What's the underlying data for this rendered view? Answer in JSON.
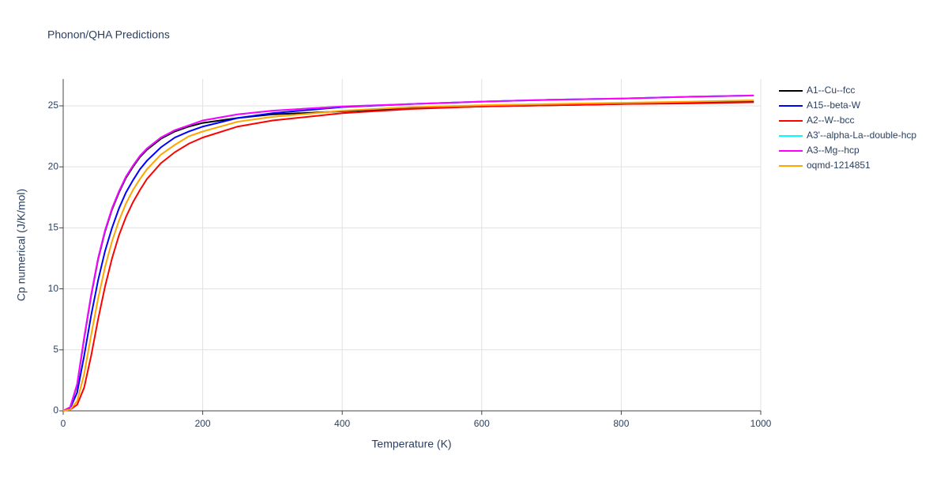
{
  "chart_data": {
    "type": "line",
    "title": "Phonon/QHA Predictions",
    "x_label": "Temperature (K)",
    "y_label": "Cp numerical (J/K/mol)",
    "x": [
      0,
      10,
      20,
      30,
      40,
      50,
      60,
      70,
      80,
      90,
      100,
      110,
      120,
      140,
      160,
      180,
      200,
      250,
      300,
      400,
      500,
      600,
      700,
      800,
      900,
      990
    ],
    "series": [
      {
        "name": "A1--Cu--fcc",
        "color": "#000000",
        "values": [
          0,
          0.3,
          2.1,
          5.9,
          9.4,
          12.4,
          14.7,
          16.5,
          17.9,
          19.1,
          20.0,
          20.8,
          21.4,
          22.3,
          22.9,
          23.3,
          23.6,
          24.0,
          24.3,
          24.55,
          24.8,
          24.95,
          25.05,
          25.15,
          25.25,
          25.35
        ]
      },
      {
        "name": "A15--beta-W",
        "color": "#0000ff",
        "values": [
          0,
          0.2,
          1.5,
          4.5,
          7.8,
          10.7,
          13.1,
          15.0,
          16.6,
          17.9,
          18.9,
          19.8,
          20.5,
          21.6,
          22.4,
          22.9,
          23.3,
          24.0,
          24.4,
          24.9,
          25.15,
          25.35,
          25.5,
          25.6,
          25.75,
          25.85
        ]
      },
      {
        "name": "A2--W--bcc",
        "color": "#ff0000",
        "values": [
          0,
          0.1,
          0.5,
          1.9,
          4.5,
          7.5,
          10.2,
          12.5,
          14.4,
          15.9,
          17.1,
          18.1,
          19.0,
          20.3,
          21.2,
          21.9,
          22.4,
          23.3,
          23.8,
          24.4,
          24.75,
          24.95,
          25.05,
          25.15,
          25.2,
          25.3
        ]
      },
      {
        "name": "A3'--alpha-La--double-hcp",
        "color": "#00ffff",
        "values": [
          0,
          0.3,
          2.2,
          6.0,
          9.5,
          12.5,
          14.8,
          16.6,
          18.0,
          19.2,
          20.1,
          20.9,
          21.5,
          22.4,
          23.0,
          23.4,
          23.8,
          24.3,
          24.6,
          24.95,
          25.15,
          25.35,
          25.5,
          25.6,
          25.75,
          25.85
        ]
      },
      {
        "name": "A3--Mg--hcp",
        "color": "#ff00ff",
        "values": [
          0,
          0.3,
          2.2,
          6.0,
          9.5,
          12.5,
          14.8,
          16.6,
          18.0,
          19.2,
          20.1,
          20.9,
          21.5,
          22.4,
          23.0,
          23.4,
          23.8,
          24.3,
          24.6,
          24.95,
          25.15,
          25.35,
          25.5,
          25.6,
          25.75,
          25.85
        ]
      },
      {
        "name": "oqmd-1214851",
        "color": "#ffa500",
        "values": [
          0,
          0.1,
          0.8,
          3.0,
          6.2,
          9.2,
          11.8,
          13.9,
          15.6,
          17.0,
          18.1,
          19.0,
          19.8,
          21.0,
          21.8,
          22.5,
          22.9,
          23.7,
          24.1,
          24.6,
          24.9,
          25.05,
          25.15,
          25.25,
          25.35,
          25.45
        ]
      }
    ],
    "xlim": [
      0,
      1000
    ],
    "xticks": [
      0,
      200,
      400,
      600,
      800,
      1000
    ],
    "ylim": [
      0,
      27.2
    ],
    "yticks": [
      0,
      5,
      10,
      15,
      20,
      25
    ],
    "grid": true,
    "legend": "right"
  }
}
